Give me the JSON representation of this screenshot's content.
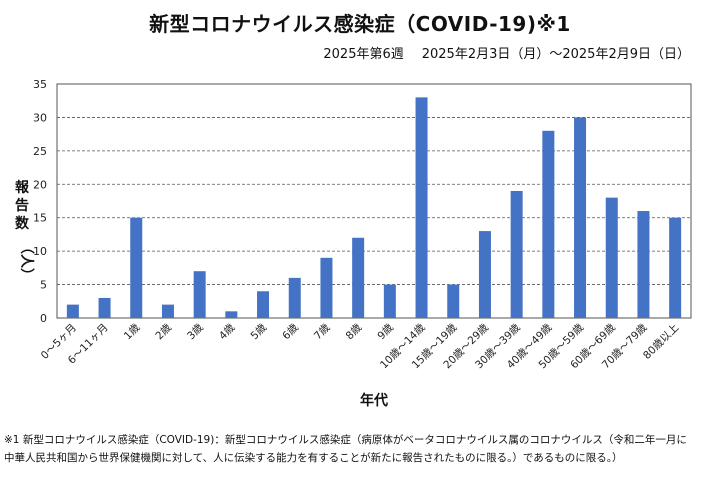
{
  "chart_data": {
    "type": "bar",
    "title": "新型コロナウイルス感染症（COVID-19)※1",
    "subtitle_week": "2025年第6週",
    "subtitle_dates": "2025年2月3日（月）〜2025年2月9日（日）",
    "xlabel": "年代",
    "ylabel_chars": [
      "報",
      "告",
      "数",
      "（人）"
    ],
    "ylim": [
      0,
      35
    ],
    "yticks": [
      0,
      5,
      10,
      15,
      20,
      25,
      30,
      35
    ],
    "categories": [
      "0〜5ヶ月",
      "6〜11ヶ月",
      "1歳",
      "2歳",
      "3歳",
      "4歳",
      "5歳",
      "6歳",
      "7歳",
      "8歳",
      "9歳",
      "10歳〜14歳",
      "15歳〜19歳",
      "20歳〜29歳",
      "30歳〜39歳",
      "40歳〜49歳",
      "50歳〜59歳",
      "60歳〜69歳",
      "70歳〜79歳",
      "80歳以上"
    ],
    "values": [
      2,
      3,
      15,
      2,
      7,
      1,
      4,
      6,
      9,
      12,
      5,
      33,
      5,
      13,
      19,
      28,
      30,
      18,
      16,
      15
    ],
    "bar_color": "#4472c4"
  },
  "footnote": {
    "line1": "※1 新型コロナウイルス感染症（COVID-19)：新型コロナウイルス感染症（病原体がベータコロナウイルス属のコロナウイルス（令和二年一月に",
    "line2": "中華人民共和国から世界保健機関に対して、人に伝染する能力を有することが新たに報告されたものに限る。）であるものに限る。）"
  }
}
